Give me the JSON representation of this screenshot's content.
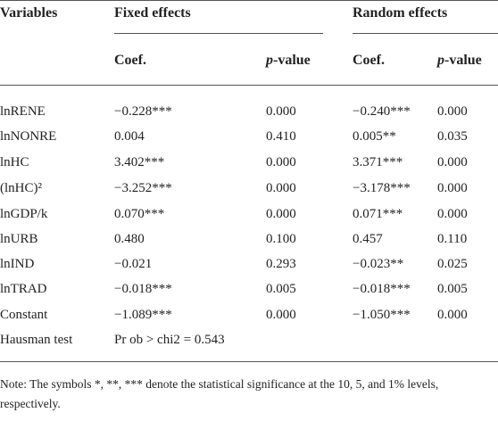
{
  "header": {
    "variables": "Variables",
    "groups": [
      "Fixed effects",
      "Random effects"
    ],
    "subheaders": [
      {
        "text": "Coef."
      },
      {
        "italic": "p",
        "rest": "-value"
      },
      {
        "text": "Coef."
      },
      {
        "italic": "p",
        "rest": "-value"
      }
    ]
  },
  "table": {
    "rows": [
      [
        "lnRENE",
        "−0.228***",
        "0.000",
        "−0.240***",
        "0.000"
      ],
      [
        "lnNONRE",
        "0.004",
        "0.410",
        "0.005**",
        "0.035"
      ],
      [
        "lnHC",
        "3.402***",
        "0.000",
        "3.371***",
        "0.000"
      ],
      [
        "(lnHC)²",
        "−3.252***",
        "0.000",
        "−3.178***",
        "0.000"
      ],
      [
        "lnGDP/k",
        "0.070***",
        "0.000",
        "0.071***",
        "0.000"
      ],
      [
        "lnURB",
        "0.480",
        "0.100",
        "0.457",
        "0.110"
      ],
      [
        "lnIND",
        "−0.021",
        "0.293",
        "−0.023**",
        "0.025"
      ],
      [
        "lnTRAD",
        "−0.018***",
        "0.005",
        "−0.018***",
        "0.005"
      ],
      [
        "Constant",
        "−1.089***",
        "0.000",
        "−1.050***",
        "0.000"
      ],
      [
        "Hausman test",
        "Pr ob > chi2 = 0.543"
      ]
    ]
  },
  "note": "Note: The symbols *, **, *** denote the statistical significance at the 10, 5, and 1% levels, respectively."
}
